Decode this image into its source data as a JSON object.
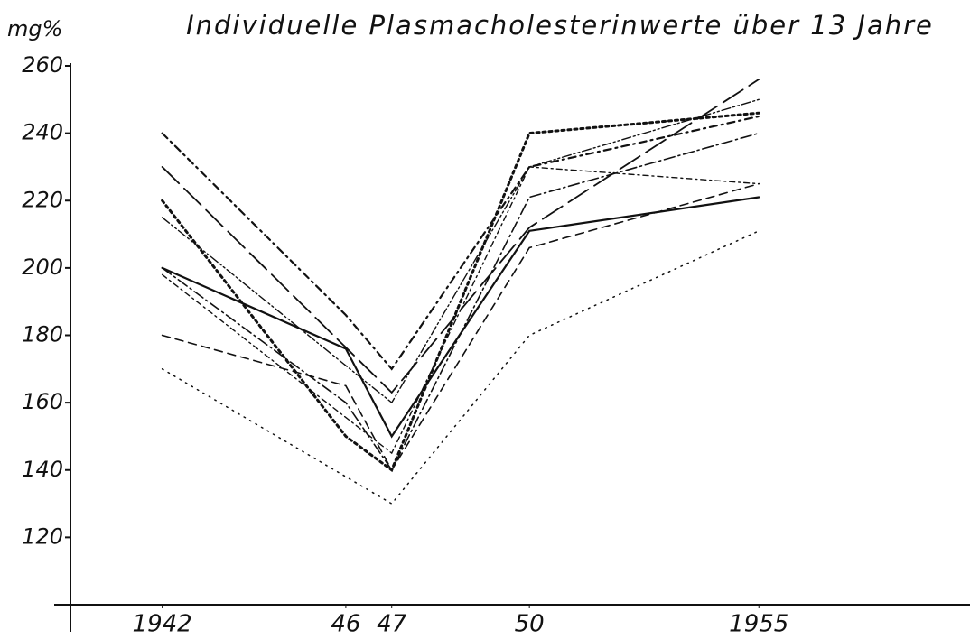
{
  "chart_data": {
    "type": "line",
    "title": "Individuelle Plasmacholesterinwerte über 13 Jahre",
    "y_label": "mg%",
    "xlim": [
      1940,
      1959.6
    ],
    "xticks": [
      1942,
      {
        "value": 1946,
        "label": "46"
      },
      {
        "value": 1947,
        "label": "47"
      },
      {
        "value": 1950,
        "label": "50"
      },
      1955
    ],
    "ylim": [
      100,
      260
    ],
    "yticks": [
      120,
      140,
      160,
      180,
      200,
      220,
      240,
      260
    ],
    "color": "#111111",
    "series": [
      {
        "x": [
          1942,
          1946,
          1947,
          1950,
          1955
        ],
        "values": [
          200,
          176,
          150,
          211,
          221
        ]
      },
      {
        "x": [
          1942,
          1947,
          1950,
          1955
        ],
        "values": [
          170,
          130,
          180,
          211
        ]
      },
      {
        "x": [
          1942,
          1946,
          1947,
          1950,
          1955
        ],
        "values": [
          180,
          165,
          140,
          206,
          225
        ]
      },
      {
        "x": [
          1942,
          1947,
          1950,
          1955
        ],
        "values": [
          230,
          163,
          212,
          256
        ]
      },
      {
        "x": [
          1942,
          1946,
          1947,
          1950,
          1955
        ],
        "values": [
          240,
          186,
          170,
          230,
          245
        ]
      },
      {
        "x": [
          1942,
          1946,
          1947,
          1950,
          1955
        ],
        "values": [
          200,
          160,
          140,
          221,
          240
        ]
      },
      {
        "x": [
          1942,
          1946,
          1947,
          1950,
          1955
        ],
        "values": [
          220,
          150,
          140,
          240,
          246
        ]
      },
      {
        "x": [
          1942,
          1947,
          1950,
          1955
        ],
        "values": [
          198,
          145,
          230,
          225
        ]
      },
      {
        "x": [
          1942,
          1947,
          1950,
          1955
        ],
        "values": [
          215,
          160,
          230,
          250
        ]
      }
    ]
  }
}
